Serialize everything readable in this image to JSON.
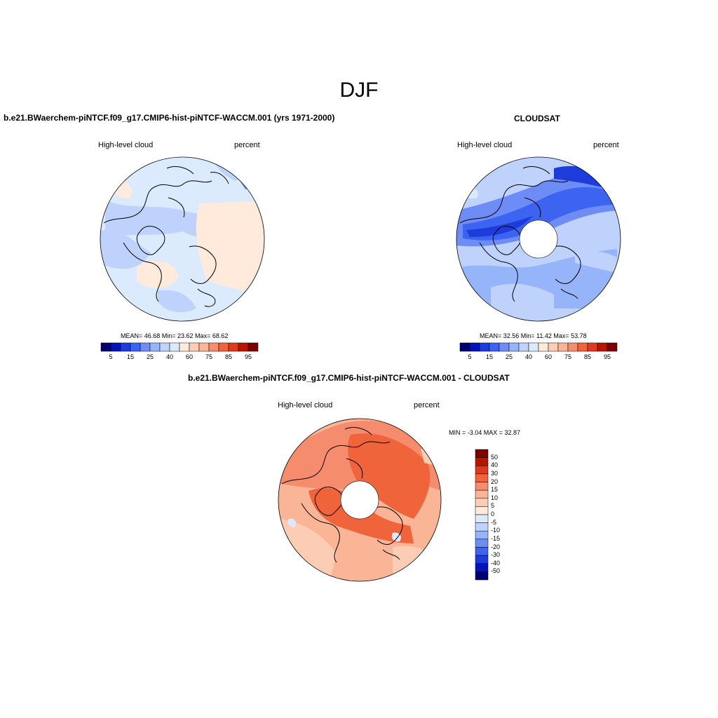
{
  "figure": {
    "title": "DJF"
  },
  "panels": [
    {
      "title": "b.e21.BWaerchem-piNTCF.f09_g17.CMIP6-hist-piNTCF-WACCM.001 (yrs 1971-2000)",
      "left_label": "High-level cloud",
      "right_label": "percent",
      "stats": "MEAN=  46.68  Min=  23.62  Max=  68.62"
    },
    {
      "title": "CLOUDSAT",
      "left_label": "High-level cloud",
      "right_label": "percent",
      "stats": "MEAN=  32.56  Min=  11.42  Max=  53.78"
    },
    {
      "title": "b.e21.BWaerchem-piNTCF.f09_g17.CMIP6-hist-piNTCF-WACCM.001 - CLOUDSAT",
      "left_label": "High-level cloud",
      "right_label": "percent",
      "stats": "MIN =  -3.04 MAX =  32.87"
    }
  ],
  "colorbars": {
    "abs": {
      "tick_labels": [
        "5",
        "15",
        "25",
        "40",
        "60",
        "75",
        "85",
        "95"
      ],
      "colors": [
        "#00006e",
        "#0016b4",
        "#1e3cdc",
        "#3c64f0",
        "#6e8cf5",
        "#96b4fa",
        "#bed2fc",
        "#dceafd",
        "#ffeadc",
        "#fccdb4",
        "#fab496",
        "#f58c6e",
        "#f0643c",
        "#dc3c1e",
        "#b41600",
        "#7d0000"
      ]
    },
    "diff": {
      "tick_labels": [
        "50",
        "40",
        "30",
        "20",
        "15",
        "10",
        "5",
        "0",
        "-5",
        "-10",
        "-15",
        "-20",
        "-30",
        "-40",
        "-50"
      ],
      "colors": [
        "#7d0000",
        "#b41600",
        "#dc3c1e",
        "#f0643c",
        "#f58c6e",
        "#fab496",
        "#fccdb4",
        "#ffeadc",
        "#dceafd",
        "#bed2fc",
        "#96b4fa",
        "#6e8cf5",
        "#3c64f0",
        "#1e3cdc",
        "#0016b4",
        "#00006e"
      ]
    }
  }
}
